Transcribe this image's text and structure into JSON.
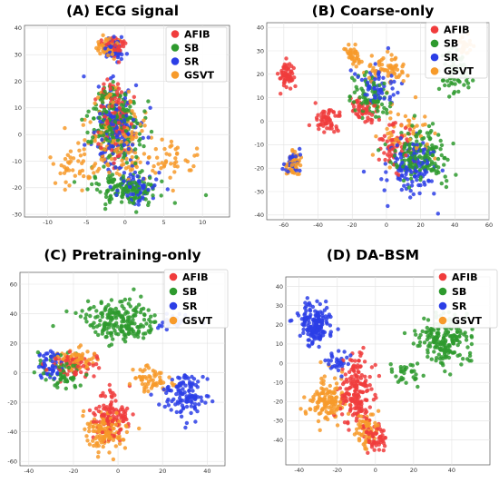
{
  "chart_data": [
    {
      "type": "scatter",
      "title": "(A) ECG signal",
      "xlim": [
        -13,
        13.5
      ],
      "ylim": [
        -31,
        41
      ],
      "xticks": [
        -10,
        -5,
        0,
        5,
        10
      ],
      "yticks": [
        -30,
        -20,
        -10,
        0,
        10,
        20,
        30,
        40
      ],
      "grid": true,
      "legend": {
        "placement": "top-right",
        "entries": [
          "AFIB",
          "SB",
          "SR",
          "GSVT"
        ]
      },
      "series": [
        {
          "name": "AFIB",
          "color": "#f03c3c",
          "clusters": [
            {
              "x": -1.5,
              "y": 33,
              "sx": 1.0,
              "sy": 3.0,
              "n": 70
            },
            {
              "x": -1.5,
              "y": 5,
              "sx": 2.0,
              "sy": 14,
              "n": 110
            }
          ]
        },
        {
          "name": "SB",
          "color": "#2e9a2e",
          "clusters": [
            {
              "x": -1.5,
              "y": 5,
              "sx": 3.0,
              "sy": 14,
              "n": 200
            },
            {
              "x": 0,
              "y": -20,
              "sx": 4.0,
              "sy": 5,
              "n": 150
            }
          ]
        },
        {
          "name": "SR",
          "color": "#2b3ee6",
          "clusters": [
            {
              "x": -1.5,
              "y": 32,
              "sx": 1.0,
              "sy": 3.5,
              "n": 60
            },
            {
              "x": -1,
              "y": 0,
              "sx": 2.5,
              "sy": 15,
              "n": 150
            },
            {
              "x": 2,
              "y": -20,
              "sx": 3.0,
              "sy": 5,
              "n": 60
            }
          ]
        },
        {
          "name": "GSVT",
          "color": "#f79a2a",
          "clusters": [
            {
              "x": -2,
              "y": 33,
              "sx": 1.3,
              "sy": 3.0,
              "n": 80
            },
            {
              "x": -1,
              "y": 0,
              "sx": 3.5,
              "sy": 15,
              "n": 150
            },
            {
              "x": -6,
              "y": -12,
              "sx": 3.0,
              "sy": 8,
              "n": 50
            },
            {
              "x": 6,
              "y": -10,
              "sx": 3.0,
              "sy": 8,
              "n": 40
            }
          ]
        }
      ]
    },
    {
      "type": "scatter",
      "title": "(B) Coarse-only",
      "xlim": [
        -70,
        60
      ],
      "ylim": [
        -42,
        42
      ],
      "xticks": [
        -60,
        -40,
        -20,
        0,
        20,
        40,
        60
      ],
      "yticks": [
        -40,
        -30,
        -20,
        -10,
        0,
        10,
        20,
        30,
        40
      ],
      "grid": true,
      "legend": {
        "placement": "top-right",
        "entries": [
          "AFIB",
          "SB",
          "SR",
          "GSVT"
        ]
      },
      "series": [
        {
          "name": "AFIB",
          "color": "#f03c3c",
          "clusters": [
            {
              "x": -58,
              "y": 20,
              "sx": 4,
              "sy": 5,
              "n": 60
            },
            {
              "x": -35,
              "y": 0,
              "sx": 8,
              "sy": 5,
              "n": 60
            },
            {
              "x": -15,
              "y": 5,
              "sx": 7,
              "sy": 5,
              "n": 50
            },
            {
              "x": 5,
              "y": -10,
              "sx": 10,
              "sy": 10,
              "n": 60
            }
          ]
        },
        {
          "name": "SB",
          "color": "#2e9a2e",
          "clusters": [
            {
              "x": 20,
              "y": -15,
              "sx": 14,
              "sy": 10,
              "n": 160
            },
            {
              "x": -10,
              "y": 10,
              "sx": 12,
              "sy": 8,
              "n": 80
            },
            {
              "x": 40,
              "y": 20,
              "sx": 8,
              "sy": 10,
              "n": 60
            }
          ]
        },
        {
          "name": "SR",
          "color": "#2b3ee6",
          "clusters": [
            {
              "x": 15,
              "y": -20,
              "sx": 14,
              "sy": 10,
              "n": 130
            },
            {
              "x": -5,
              "y": 15,
              "sx": 12,
              "sy": 8,
              "n": 60
            },
            {
              "x": -55,
              "y": -18,
              "sx": 5,
              "sy": 5,
              "n": 30
            }
          ]
        },
        {
          "name": "GSVT",
          "color": "#f79a2a",
          "clusters": [
            {
              "x": -55,
              "y": -18,
              "sx": 4,
              "sy": 5,
              "n": 50
            },
            {
              "x": -20,
              "y": 28,
              "sx": 5,
              "sy": 4,
              "n": 40
            },
            {
              "x": 0,
              "y": 22,
              "sx": 12,
              "sy": 6,
              "n": 60
            },
            {
              "x": 45,
              "y": 32,
              "sx": 4,
              "sy": 4,
              "n": 30
            },
            {
              "x": 10,
              "y": -5,
              "sx": 15,
              "sy": 10,
              "n": 50
            }
          ]
        }
      ]
    },
    {
      "type": "scatter",
      "title": "(C) Pretraining-only",
      "xlim": [
        -44,
        48
      ],
      "ylim": [
        -63,
        68
      ],
      "xticks": [
        -40,
        -20,
        0,
        20,
        40
      ],
      "yticks": [
        -60,
        -40,
        -20,
        0,
        20,
        40,
        60
      ],
      "grid": true,
      "legend": {
        "placement": "top-right",
        "entries": [
          "AFIB",
          "SB",
          "SR",
          "GSVT"
        ]
      },
      "series": [
        {
          "name": "AFIB",
          "color": "#f03c3c",
          "clusters": [
            {
              "x": -3,
              "y": -30,
              "sx": 8,
              "sy": 15,
              "n": 120
            },
            {
              "x": -20,
              "y": 5,
              "sx": 10,
              "sy": 8,
              "n": 60
            }
          ]
        },
        {
          "name": "SB",
          "color": "#2e9a2e",
          "clusters": [
            {
              "x": 0,
              "y": 35,
              "sx": 15,
              "sy": 12,
              "n": 200
            },
            {
              "x": -25,
              "y": 0,
              "sx": 8,
              "sy": 12,
              "n": 60
            }
          ]
        },
        {
          "name": "SR",
          "color": "#2b3ee6",
          "clusters": [
            {
              "x": 30,
              "y": -15,
              "sx": 8,
              "sy": 12,
              "n": 120
            },
            {
              "x": -30,
              "y": 5,
              "sx": 6,
              "sy": 10,
              "n": 50
            },
            {
              "x": 25,
              "y": 35,
              "sx": 6,
              "sy": 6,
              "n": 30
            }
          ]
        },
        {
          "name": "GSVT",
          "color": "#f79a2a",
          "clusters": [
            {
              "x": -5,
              "y": -40,
              "sx": 8,
              "sy": 12,
              "n": 120
            },
            {
              "x": -20,
              "y": 10,
              "sx": 8,
              "sy": 6,
              "n": 60
            },
            {
              "x": 15,
              "y": -5,
              "sx": 8,
              "sy": 8,
              "n": 60
            }
          ]
        }
      ]
    },
    {
      "type": "scatter",
      "title": "(D) DA-BSM",
      "xlim": [
        -47,
        60
      ],
      "ylim": [
        -53,
        45
      ],
      "xticks": [
        -40,
        -20,
        0,
        20,
        40
      ],
      "yticks": [
        -40,
        -30,
        -20,
        -10,
        0,
        10,
        20,
        30,
        40
      ],
      "grid": true,
      "legend": {
        "placement": "top-right",
        "entries": [
          "AFIB",
          "SB",
          "SR",
          "GSVT"
        ]
      },
      "series": [
        {
          "name": "AFIB",
          "color": "#f03c3c",
          "clusters": [
            {
              "x": -10,
              "y": -15,
              "sx": 8,
              "sy": 15,
              "n": 180
            },
            {
              "x": 0,
              "y": -38,
              "sx": 6,
              "sy": 6,
              "n": 60
            }
          ]
        },
        {
          "name": "SB",
          "color": "#2e9a2e",
          "clusters": [
            {
              "x": 35,
              "y": 12,
              "sx": 12,
              "sy": 12,
              "n": 200
            },
            {
              "x": 15,
              "y": -5,
              "sx": 6,
              "sy": 6,
              "n": 30
            }
          ]
        },
        {
          "name": "SR",
          "color": "#2b3ee6",
          "clusters": [
            {
              "x": -32,
              "y": 20,
              "sx": 8,
              "sy": 10,
              "n": 170
            },
            {
              "x": -20,
              "y": 0,
              "sx": 6,
              "sy": 6,
              "n": 30
            }
          ]
        },
        {
          "name": "GSVT",
          "color": "#f79a2a",
          "clusters": [
            {
              "x": -25,
              "y": -20,
              "sx": 10,
              "sy": 10,
              "n": 130
            },
            {
              "x": -5,
              "y": -35,
              "sx": 6,
              "sy": 8,
              "n": 60
            }
          ]
        }
      ]
    }
  ]
}
